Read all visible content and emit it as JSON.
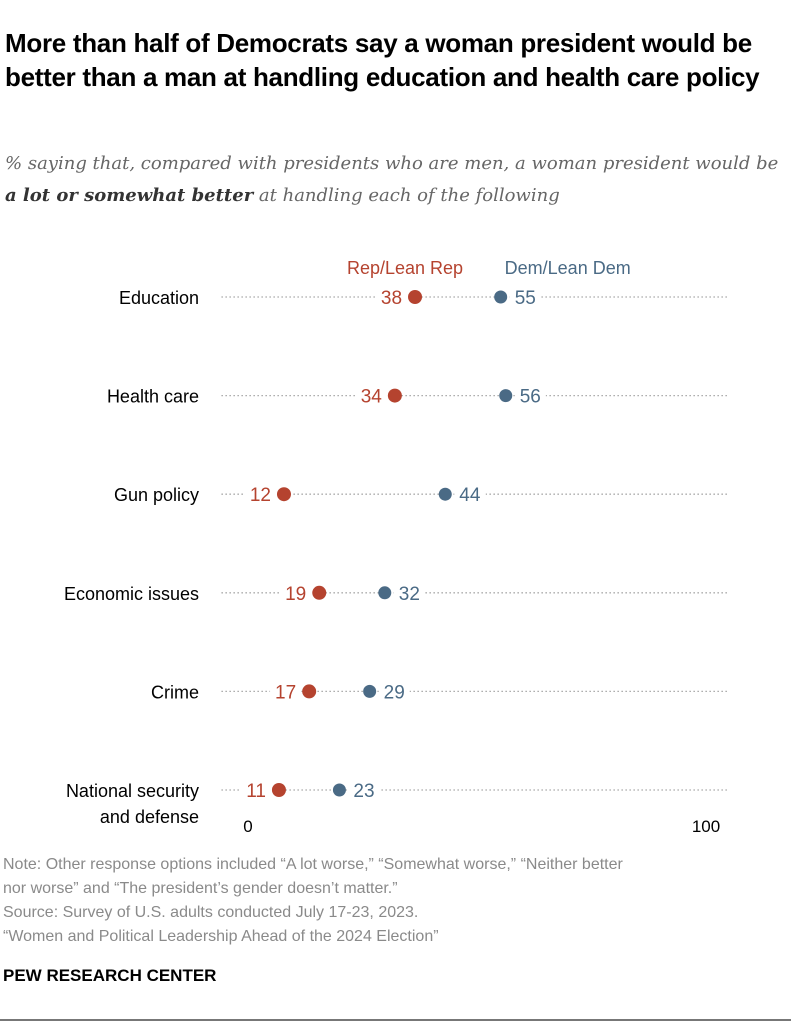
{
  "title": "More than half of Democrats say a woman president would be better than a man at handling education and health care policy",
  "subtitle": {
    "part1": "% saying that, compared with presidents who are men, a woman president would be ",
    "bold": "a lot or somewhat better",
    "part2": " at handling each of the following"
  },
  "chart_data": {
    "type": "dot",
    "categories": [
      "Education",
      "Health care",
      "Gun policy",
      "Economic issues",
      "Crime",
      "National security and defense"
    ],
    "category_lines": [
      [
        "Education"
      ],
      [
        "Health care"
      ],
      [
        "Gun policy"
      ],
      [
        "Economic issues"
      ],
      [
        "Crime"
      ],
      [
        "National security",
        "and defense"
      ]
    ],
    "series": [
      {
        "name": "Rep/Lean Rep",
        "color": "#b5432f",
        "values": [
          38,
          34,
          12,
          19,
          17,
          11
        ]
      },
      {
        "name": "Dem/Lean Dem",
        "color": "#4a6a85",
        "values": [
          55,
          56,
          44,
          32,
          29,
          23
        ]
      }
    ],
    "xlim": [
      0,
      100
    ],
    "x_tick_labels": [
      "0",
      "100"
    ],
    "legend": "top, above first row"
  },
  "footer": {
    "note1": "Note: Other response options included “A lot worse,” “Somewhat worse,” “Neither better",
    "note2": "nor worse” and “The president’s gender doesn’t matter.”",
    "source": "Source: Survey of U.S. adults conducted July 17-23, 2023.",
    "report": "“Women and Political Leadership Ahead of the 2024 Election”",
    "brand": "PEW RESEARCH CENTER"
  }
}
